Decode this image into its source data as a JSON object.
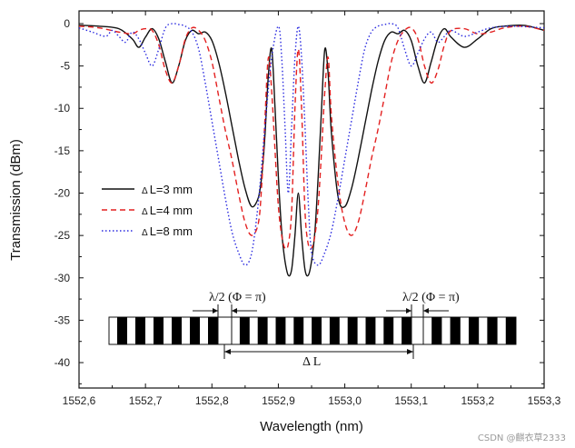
{
  "chart_data": {
    "type": "line",
    "xlabel": "Wavelength (nm)",
    "ylabel": "Transmission (dBm)",
    "xlim": [
      1552.6,
      1553.3
    ],
    "ylim": [
      -43,
      1.5
    ],
    "xticks": [
      1552.6,
      1552.7,
      1552.8,
      1552.9,
      1553.0,
      1553.1,
      1553.2,
      1553.3
    ],
    "xtick_labels": [
      "1552,6",
      "1552,7",
      "1552,8",
      "1552,9",
      "1553,0",
      "1553,1",
      "1553,2",
      "1553,3"
    ],
    "yticks": [
      0,
      -5,
      -10,
      -15,
      -20,
      -25,
      -30,
      -35,
      -40
    ],
    "ytick_labels": [
      "0",
      "-5",
      "-10",
      "-15",
      "-20",
      "-25",
      "-30",
      "-35",
      "-40"
    ],
    "series": [
      {
        "name": "ΔL=3 mm",
        "label_symbol": "Δ",
        "label_rest": "L=3 mm",
        "color": "#111111",
        "style": "solid",
        "x": [
          1552.6,
          1552.63,
          1552.66,
          1552.68,
          1552.69,
          1552.7,
          1552.71,
          1552.72,
          1552.73,
          1552.74,
          1552.75,
          1552.76,
          1552.77,
          1552.78,
          1552.79,
          1552.8,
          1552.81,
          1552.82,
          1552.83,
          1552.84,
          1552.85,
          1552.86,
          1552.87,
          1552.875,
          1552.88,
          1552.885,
          1552.89,
          1552.895,
          1552.9,
          1552.905,
          1552.91,
          1552.915,
          1552.92,
          1552.925,
          1552.93,
          1552.935,
          1552.94,
          1552.945,
          1552.95,
          1552.955,
          1552.96,
          1552.965,
          1552.97,
          1552.975,
          1552.98,
          1552.99,
          1553.0,
          1553.01,
          1553.02,
          1553.03,
          1553.04,
          1553.05,
          1553.06,
          1553.07,
          1553.08,
          1553.09,
          1553.1,
          1553.11,
          1553.12,
          1553.13,
          1553.14,
          1553.15,
          1553.16,
          1553.18,
          1553.2,
          1553.22,
          1553.24,
          1553.27,
          1553.3
        ],
        "y": [
          -0.2,
          -0.3,
          -0.6,
          -1.8,
          -2.8,
          -1.6,
          -0.6,
          -1.8,
          -4.5,
          -7.0,
          -5.0,
          -2.0,
          -0.8,
          -1.2,
          -1.0,
          -2.0,
          -4.5,
          -8.0,
          -12.0,
          -16.0,
          -19.5,
          -21.6,
          -20.5,
          -18.0,
          -13.0,
          -6.0,
          -3.0,
          -10.0,
          -18.0,
          -24.5,
          -28.0,
          -29.7,
          -29.0,
          -25.0,
          -20.0,
          -25.0,
          -29.0,
          -29.7,
          -28.0,
          -24.5,
          -18.0,
          -10.0,
          -3.0,
          -6.0,
          -13.0,
          -20.5,
          -21.6,
          -19.5,
          -16.0,
          -12.0,
          -8.0,
          -4.5,
          -2.0,
          -1.0,
          -1.2,
          -0.8,
          -2.0,
          -5.0,
          -7.0,
          -4.5,
          -1.8,
          -0.6,
          -1.6,
          -2.8,
          -1.8,
          -0.6,
          -0.3,
          -0.2,
          -0.8
        ]
      },
      {
        "name": "ΔL=4 mm",
        "label_symbol": "Δ",
        "label_rest": "L=4 mm",
        "color": "#e32020",
        "style": "dashed",
        "x": [
          1552.6,
          1552.63,
          1552.66,
          1552.68,
          1552.69,
          1552.7,
          1552.71,
          1552.72,
          1552.73,
          1552.74,
          1552.75,
          1552.76,
          1552.77,
          1552.78,
          1552.79,
          1552.8,
          1552.81,
          1552.82,
          1552.83,
          1552.84,
          1552.85,
          1552.86,
          1552.87,
          1552.875,
          1552.88,
          1552.885,
          1552.89,
          1552.895,
          1552.9,
          1552.905,
          1552.91,
          1552.915,
          1552.92,
          1552.925,
          1552.93,
          1552.935,
          1552.94,
          1552.945,
          1552.95,
          1552.955,
          1552.96,
          1552.965,
          1552.97,
          1552.975,
          1552.98,
          1552.99,
          1553.0,
          1553.01,
          1553.02,
          1553.03,
          1553.04,
          1553.05,
          1553.06,
          1553.07,
          1553.08,
          1553.09,
          1553.1,
          1553.11,
          1553.12,
          1553.13,
          1553.14,
          1553.15,
          1553.16,
          1553.18,
          1553.2,
          1553.22,
          1553.24,
          1553.27,
          1553.3
        ],
        "y": [
          -0.3,
          -0.5,
          -1.0,
          -1.2,
          -0.8,
          -0.6,
          -0.8,
          -2.5,
          -5.5,
          -7.0,
          -5.0,
          -1.8,
          -0.5,
          -0.8,
          -2.0,
          -4.5,
          -8.5,
          -12.5,
          -16.0,
          -20.0,
          -23.5,
          -25.0,
          -23.5,
          -19.0,
          -11.0,
          -4.0,
          -8.0,
          -15.0,
          -21.5,
          -25.0,
          -26.5,
          -26.0,
          -22.0,
          -10.0,
          -3.0,
          -10.0,
          -22.0,
          -26.0,
          -26.5,
          -25.0,
          -21.5,
          -15.0,
          -8.0,
          -4.0,
          -11.0,
          -19.0,
          -23.5,
          -25.0,
          -23.5,
          -20.0,
          -16.0,
          -12.5,
          -8.5,
          -4.5,
          -2.0,
          -0.8,
          -0.5,
          -1.8,
          -5.0,
          -7.0,
          -5.5,
          -2.5,
          -0.8,
          -0.6,
          -1.2,
          -1.0,
          -0.5,
          -0.3,
          -0.8
        ]
      },
      {
        "name": "ΔL=8 mm",
        "label_symbol": "Δ",
        "label_rest": "L=8 mm",
        "color": "#2a2ae0",
        "style": "dotted",
        "x": [
          1552.6,
          1552.62,
          1552.64,
          1552.65,
          1552.66,
          1552.67,
          1552.68,
          1552.69,
          1552.7,
          1552.71,
          1552.72,
          1552.73,
          1552.74,
          1552.75,
          1552.76,
          1552.77,
          1552.78,
          1552.79,
          1552.8,
          1552.81,
          1552.82,
          1552.83,
          1552.84,
          1552.85,
          1552.86,
          1552.87,
          1552.88,
          1552.89,
          1552.9,
          1552.905,
          1552.91,
          1552.915,
          1552.92,
          1552.925,
          1552.93,
          1552.935,
          1552.94,
          1552.945,
          1552.95,
          1552.96,
          1552.97,
          1552.98,
          1552.99,
          1553.0,
          1553.01,
          1553.02,
          1553.03,
          1553.04,
          1553.05,
          1553.06,
          1553.07,
          1553.08,
          1553.09,
          1553.1,
          1553.11,
          1553.12,
          1553.13,
          1553.14,
          1553.15,
          1553.16,
          1553.18,
          1553.2,
          1553.22,
          1553.25,
          1553.3
        ],
        "y": [
          -0.5,
          -1.0,
          -1.5,
          -0.8,
          -1.5,
          -2.2,
          -1.0,
          -1.8,
          -3.5,
          -5.0,
          -3.0,
          -0.5,
          0.0,
          -0.1,
          -0.3,
          -1.0,
          -3.0,
          -7.0,
          -11.5,
          -16.0,
          -20.5,
          -24.5,
          -27.0,
          -28.5,
          -27.0,
          -21.0,
          -12.0,
          -4.0,
          -0.3,
          -4.0,
          -12.0,
          -20.0,
          -12.0,
          -4.0,
          -0.3,
          -4.0,
          -12.0,
          -21.0,
          -27.0,
          -28.5,
          -27.0,
          -24.5,
          -20.5,
          -16.0,
          -11.5,
          -7.0,
          -3.0,
          -1.0,
          -0.3,
          -0.1,
          0.0,
          -0.5,
          -3.0,
          -5.0,
          -3.5,
          -1.8,
          -1.0,
          -2.2,
          -1.5,
          -0.8,
          -1.5,
          -1.0,
          -0.5,
          -0.3,
          -0.5
        ]
      }
    ],
    "annotations": {
      "left_phase": "λ/2 (Φ = π)",
      "right_phase": "λ/2 (Φ = π)",
      "cavity": "Δ L",
      "grating_periods_left": 6,
      "grating_periods_middle": 10,
      "grating_periods_right": 5
    }
  },
  "watermark": "CSDN @麒衣草2333"
}
